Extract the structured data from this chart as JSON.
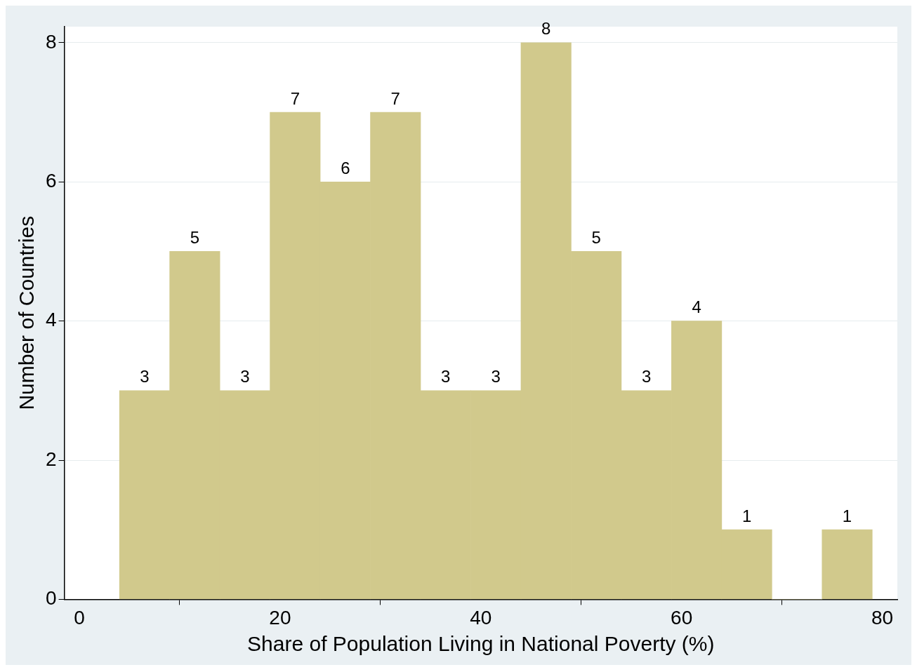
{
  "chart_data": {
    "type": "histogram",
    "xlabel": "Share of Population Living in National Poverty (%)",
    "ylabel": "Number of Countries",
    "bins": [
      4,
      9,
      14,
      19,
      24,
      29,
      34,
      39,
      44,
      49,
      54,
      59,
      64,
      69,
      74,
      79
    ],
    "values": [
      3,
      5,
      3,
      7,
      6,
      7,
      3,
      3,
      8,
      5,
      3,
      4,
      1,
      0,
      1
    ],
    "value_labels": [
      "3",
      "5",
      "3",
      "7",
      "6",
      "7",
      "3",
      "3",
      "8",
      "5",
      "3",
      "4",
      "1",
      null,
      "1"
    ],
    "color": "#d1c98c",
    "xlim": [
      -1.5,
      81.5
    ],
    "xticks": [
      0,
      20,
      40,
      60,
      80
    ],
    "ylim": [
      0,
      8.23
    ],
    "yticks": [
      0,
      2,
      4,
      6,
      8
    ],
    "grid": "y",
    "legend": false
  }
}
